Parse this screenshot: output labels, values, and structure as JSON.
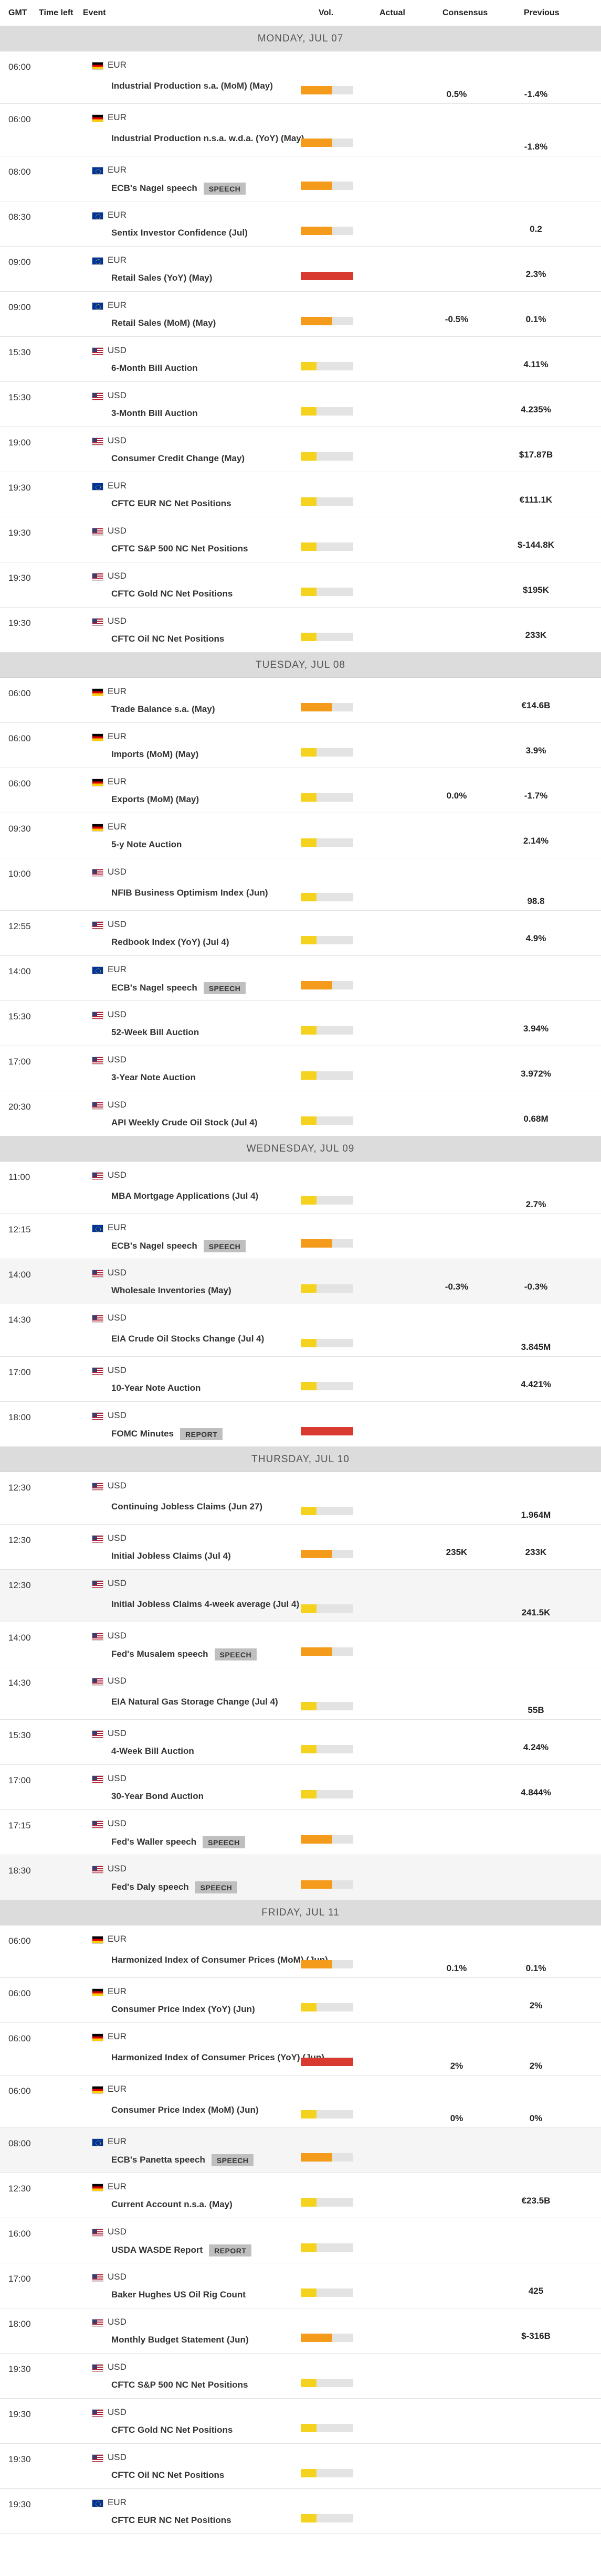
{
  "header": {
    "gmt": "GMT",
    "time_left": "Time left",
    "event": "Event",
    "vol": "Vol.",
    "actual": "Actual",
    "consensus": "Consensus",
    "previous": "Previous"
  },
  "colors": {
    "low": "#f5d21d",
    "medium": "#f49b1c",
    "high": "#d93a2f",
    "track": "#e3e3e3"
  },
  "days": [
    {
      "label": "MONDAY, JUL 07",
      "events": [
        {
          "time": "06:00",
          "currency": "EUR",
          "flag": "de",
          "name": "Industrial Production s.a. (MoM) (May)",
          "vol": "medium",
          "consensus": "0.5%",
          "previous": "-1.4%",
          "tall": true
        },
        {
          "time": "06:00",
          "currency": "EUR",
          "flag": "de",
          "name": "Industrial Production n.s.a. w.d.a. (YoY) (May)",
          "vol": "medium",
          "previous": "-1.8%",
          "tall": true
        },
        {
          "time": "08:00",
          "currency": "EUR",
          "flag": "eu",
          "name": "ECB's Nagel speech",
          "badge": "SPEECH",
          "vol": "medium"
        },
        {
          "time": "08:30",
          "currency": "EUR",
          "flag": "eu",
          "name": "Sentix Investor Confidence (Jul)",
          "vol": "medium",
          "previous": "0.2"
        },
        {
          "time": "09:00",
          "currency": "EUR",
          "flag": "eu",
          "name": "Retail Sales (YoY) (May)",
          "vol": "high",
          "previous": "2.3%"
        },
        {
          "time": "09:00",
          "currency": "EUR",
          "flag": "eu",
          "name": "Retail Sales (MoM) (May)",
          "vol": "medium",
          "consensus": "-0.5%",
          "previous": "0.1%"
        },
        {
          "time": "15:30",
          "currency": "USD",
          "flag": "us",
          "name": "6-Month Bill Auction",
          "vol": "low",
          "previous": "4.11%"
        },
        {
          "time": "15:30",
          "currency": "USD",
          "flag": "us",
          "name": "3-Month Bill Auction",
          "vol": "low",
          "previous": "4.235%"
        },
        {
          "time": "19:00",
          "currency": "USD",
          "flag": "us",
          "name": "Consumer Credit Change (May)",
          "vol": "low",
          "previous": "$17.87B"
        },
        {
          "time": "19:30",
          "currency": "EUR",
          "flag": "eu",
          "name": "CFTC EUR NC Net Positions",
          "vol": "low",
          "previous": "€111.1K"
        },
        {
          "time": "19:30",
          "currency": "USD",
          "flag": "us",
          "name": "CFTC S&P 500 NC Net Positions",
          "vol": "low",
          "previous": "$-144.8K"
        },
        {
          "time": "19:30",
          "currency": "USD",
          "flag": "us",
          "name": "CFTC Gold NC Net Positions",
          "vol": "low",
          "previous": "$195K"
        },
        {
          "time": "19:30",
          "currency": "USD",
          "flag": "us",
          "name": "CFTC Oil NC Net Positions",
          "vol": "low",
          "previous": "233K"
        }
      ]
    },
    {
      "label": "TUESDAY, JUL 08",
      "events": [
        {
          "time": "06:00",
          "currency": "EUR",
          "flag": "de",
          "name": "Trade Balance s.a. (May)",
          "vol": "medium",
          "previous": "€14.6B"
        },
        {
          "time": "06:00",
          "currency": "EUR",
          "flag": "de",
          "name": "Imports (MoM) (May)",
          "vol": "low",
          "previous": "3.9%"
        },
        {
          "time": "06:00",
          "currency": "EUR",
          "flag": "de",
          "name": "Exports (MoM) (May)",
          "vol": "low",
          "consensus": "0.0%",
          "previous": "-1.7%"
        },
        {
          "time": "09:30",
          "currency": "EUR",
          "flag": "de",
          "name": "5-y Note Auction",
          "vol": "low",
          "previous": "2.14%"
        },
        {
          "time": "10:00",
          "currency": "USD",
          "flag": "us",
          "name": "NFIB Business Optimism Index (Jun)",
          "vol": "low",
          "previous": "98.8",
          "tall": true
        },
        {
          "time": "12:55",
          "currency": "USD",
          "flag": "us",
          "name": "Redbook Index (YoY) (Jul 4)",
          "vol": "low",
          "previous": "4.9%"
        },
        {
          "time": "14:00",
          "currency": "EUR",
          "flag": "eu",
          "name": "ECB's Nagel speech",
          "badge": "SPEECH",
          "vol": "medium"
        },
        {
          "time": "15:30",
          "currency": "USD",
          "flag": "us",
          "name": "52-Week Bill Auction",
          "vol": "low",
          "previous": "3.94%"
        },
        {
          "time": "17:00",
          "currency": "USD",
          "flag": "us",
          "name": "3-Year Note Auction",
          "vol": "low",
          "previous": "3.972%"
        },
        {
          "time": "20:30",
          "currency": "USD",
          "flag": "us",
          "name": "API Weekly Crude Oil Stock (Jul 4)",
          "vol": "low",
          "previous": "0.68M"
        }
      ]
    },
    {
      "label": "WEDNESDAY, JUL 09",
      "events": [
        {
          "time": "11:00",
          "currency": "USD",
          "flag": "us",
          "name": "MBA Mortgage Applications (Jul 4)",
          "vol": "low",
          "previous": "2.7%",
          "tall": true
        },
        {
          "time": "12:15",
          "currency": "EUR",
          "flag": "eu",
          "name": "ECB's Nagel speech",
          "badge": "SPEECH",
          "vol": "medium"
        },
        {
          "time": "14:00",
          "currency": "USD",
          "flag": "us",
          "name": "Wholesale Inventories (May)",
          "vol": "low",
          "consensus": "-0.3%",
          "previous": "-0.3%",
          "alt": true
        },
        {
          "time": "14:30",
          "currency": "USD",
          "flag": "us",
          "name": "EIA Crude Oil Stocks Change (Jul 4)",
          "vol": "low",
          "previous": "3.845M",
          "tall": true
        },
        {
          "time": "17:00",
          "currency": "USD",
          "flag": "us",
          "name": "10-Year Note Auction",
          "vol": "low",
          "previous": "4.421%"
        },
        {
          "time": "18:00",
          "currency": "USD",
          "flag": "us",
          "name": "FOMC Minutes",
          "badge": "REPORT",
          "vol": "high"
        }
      ]
    },
    {
      "label": "THURSDAY, JUL 10",
      "events": [
        {
          "time": "12:30",
          "currency": "USD",
          "flag": "us",
          "name": "Continuing Jobless Claims (Jun 27)",
          "vol": "low",
          "previous": "1.964M",
          "tall": true
        },
        {
          "time": "12:30",
          "currency": "USD",
          "flag": "us",
          "name": "Initial Jobless Claims (Jul 4)",
          "vol": "medium",
          "consensus": "235K",
          "previous": "233K"
        },
        {
          "time": "12:30",
          "currency": "USD",
          "flag": "us",
          "name": "Initial Jobless Claims 4-week average (Jul 4)",
          "vol": "low",
          "previous": "241.5K",
          "tall": true,
          "alt": true
        },
        {
          "time": "14:00",
          "currency": "USD",
          "flag": "us",
          "name": "Fed's Musalem speech",
          "badge": "SPEECH",
          "vol": "medium"
        },
        {
          "time": "14:30",
          "currency": "USD",
          "flag": "us",
          "name": "EIA Natural Gas Storage Change (Jul 4)",
          "vol": "low",
          "previous": "55B",
          "tall": true
        },
        {
          "time": "15:30",
          "currency": "USD",
          "flag": "us",
          "name": "4-Week Bill Auction",
          "vol": "low",
          "previous": "4.24%"
        },
        {
          "time": "17:00",
          "currency": "USD",
          "flag": "us",
          "name": "30-Year Bond Auction",
          "vol": "low",
          "previous": "4.844%"
        },
        {
          "time": "17:15",
          "currency": "USD",
          "flag": "us",
          "name": "Fed's Waller speech",
          "badge": "SPEECH",
          "vol": "medium"
        },
        {
          "time": "18:30",
          "currency": "USD",
          "flag": "us",
          "name": "Fed's Daly speech",
          "badge": "SPEECH",
          "vol": "medium",
          "alt": true
        }
      ]
    },
    {
      "label": "FRIDAY, JUL 11",
      "events": [
        {
          "time": "06:00",
          "currency": "EUR",
          "flag": "de",
          "name": "Harmonized Index of Consumer Prices (MoM) (Jun)",
          "vol": "medium",
          "consensus": "0.1%",
          "previous": "0.1%",
          "tall": true
        },
        {
          "time": "06:00",
          "currency": "EUR",
          "flag": "de",
          "name": "Consumer Price Index (YoY) (Jun)",
          "vol": "low",
          "previous": "2%"
        },
        {
          "time": "06:00",
          "currency": "EUR",
          "flag": "de",
          "name": "Harmonized Index of Consumer Prices (YoY) (Jun)",
          "vol": "high",
          "consensus": "2%",
          "previous": "2%",
          "tall": true
        },
        {
          "time": "06:00",
          "currency": "EUR",
          "flag": "de",
          "name": "Consumer Price Index (MoM) (Jun)",
          "vol": "low",
          "consensus": "0%",
          "previous": "0%",
          "tall": true
        },
        {
          "time": "08:00",
          "currency": "EUR",
          "flag": "eu",
          "name": "ECB's Panetta speech",
          "badge": "SPEECH",
          "vol": "medium",
          "alt": true
        },
        {
          "time": "12:30",
          "currency": "EUR",
          "flag": "de",
          "name": "Current Account n.s.a. (May)",
          "vol": "low",
          "previous": "€23.5B"
        },
        {
          "time": "16:00",
          "currency": "USD",
          "flag": "us",
          "name": "USDA WASDE Report",
          "badge": "REPORT",
          "vol": "low"
        },
        {
          "time": "17:00",
          "currency": "USD",
          "flag": "us",
          "name": "Baker Hughes US Oil Rig Count",
          "vol": "low",
          "previous": "425"
        },
        {
          "time": "18:00",
          "currency": "USD",
          "flag": "us",
          "name": "Monthly Budget Statement (Jun)",
          "vol": "medium",
          "previous": "$-316B"
        },
        {
          "time": "19:30",
          "currency": "USD",
          "flag": "us",
          "name": "CFTC S&P 500 NC Net Positions",
          "vol": "low"
        },
        {
          "time": "19:30",
          "currency": "USD",
          "flag": "us",
          "name": "CFTC Gold NC Net Positions",
          "vol": "low"
        },
        {
          "time": "19:30",
          "currency": "USD",
          "flag": "us",
          "name": "CFTC Oil NC Net Positions",
          "vol": "low"
        },
        {
          "time": "19:30",
          "currency": "EUR",
          "flag": "eu",
          "name": "CFTC EUR NC Net Positions",
          "vol": "low"
        }
      ]
    }
  ]
}
